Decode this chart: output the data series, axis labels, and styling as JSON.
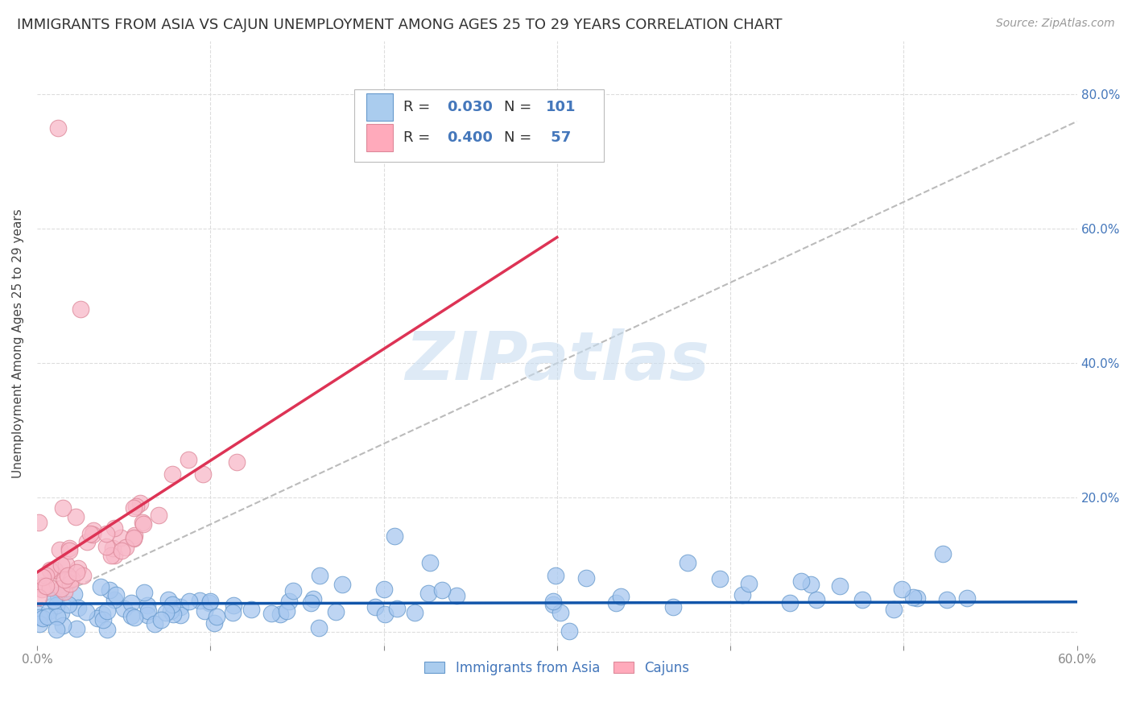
{
  "title": "IMMIGRANTS FROM ASIA VS CAJUN UNEMPLOYMENT AMONG AGES 25 TO 29 YEARS CORRELATION CHART",
  "source": "Source: ZipAtlas.com",
  "ylabel": "Unemployment Among Ages 25 to 29 years",
  "xlim": [
    0.0,
    0.6
  ],
  "ylim": [
    -0.02,
    0.88
  ],
  "series1_color": "#a8c8f0",
  "series1_edge": "#6699cc",
  "series2_color": "#f8b8c8",
  "series2_edge": "#dd8899",
  "trend1_color": "#1155aa",
  "trend2_color": "#dd3355",
  "trend_dashed_color": "#bbbbbb",
  "legend_box_color1": "#aaccee",
  "legend_box_color2": "#ffaabb",
  "R1": 0.03,
  "N1": 101,
  "R2": 0.4,
  "N2": 57,
  "watermark": "ZIPatlas",
  "background_color": "#ffffff",
  "grid_color": "#dddddd",
  "title_fontsize": 13,
  "axis_label_fontsize": 11,
  "tick_color": "#4477bb",
  "label_color": "#333333"
}
